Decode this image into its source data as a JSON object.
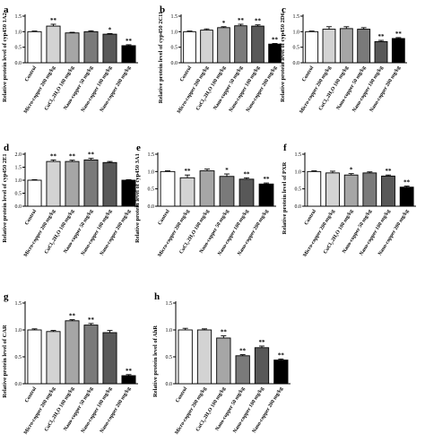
{
  "chart_data": [
    {
      "type": "bar",
      "panel": "a",
      "ylabel": "Relative protein level of cyp450 1A2",
      "categories": [
        "Control",
        "Micro-copper 200 mg/kg",
        "CuCl₂.2H₂O 100 mg/kg",
        "Nano-copper 50 mg/kg",
        "Nano-copper 100 mg/kg",
        "Nano-copper 200 mg/kg"
      ],
      "values": [
        1.0,
        1.18,
        0.96,
        1.0,
        0.92,
        0.55
      ],
      "errors": [
        0.02,
        0.06,
        0.02,
        0.03,
        0.02,
        0.03
      ],
      "significance": [
        "",
        "**",
        "",
        "",
        "*",
        "**"
      ],
      "ylim": [
        0,
        1.5
      ],
      "yticks": [
        "0.0",
        "0.5",
        "1.0",
        "1.5"
      ]
    },
    {
      "type": "bar",
      "panel": "b",
      "ylabel": "Relative protein level of cyp450 2C11",
      "categories": [
        "Control",
        "Micro-copper 200 mg/kg",
        "CuCl₂.2H₂O 100 mg/kg",
        "Nano-copper 50 mg/kg",
        "Nano-copper 100 mg/kg",
        "Nano-copper 200 mg/kg"
      ],
      "values": [
        1.0,
        1.05,
        1.13,
        1.19,
        1.18,
        0.6
      ],
      "errors": [
        0.02,
        0.04,
        0.03,
        0.05,
        0.04,
        0.02
      ],
      "significance": [
        "",
        "",
        "*",
        "**",
        "**",
        "**"
      ],
      "ylim": [
        0,
        1.5
      ],
      "yticks": [
        "0.0",
        "0.5",
        "1.0",
        "1.5"
      ]
    },
    {
      "type": "bar",
      "panel": "c",
      "ylabel": "Relative protein level of cyp450 2D6",
      "categories": [
        "Control",
        "Micro-copper 200 mg/kg",
        "CuCl₂.2H₂O 100 mg/kg",
        "Nano-copper 50 mg/kg",
        "Nano-copper 100 mg/kg",
        "Nano-copper 200 mg/kg"
      ],
      "values": [
        1.0,
        1.08,
        1.1,
        1.08,
        0.68,
        0.78
      ],
      "errors": [
        0.02,
        0.08,
        0.06,
        0.05,
        0.04,
        0.03
      ],
      "significance": [
        "",
        "",
        "",
        "",
        "**",
        "**"
      ],
      "ylim": [
        0,
        1.5
      ],
      "yticks": [
        "0.0",
        "0.5",
        "1.0",
        "1.5"
      ]
    },
    {
      "type": "bar",
      "panel": "d",
      "ylabel": "Relative protein level of cyp450 2E1",
      "categories": [
        "Control",
        "Micro-copper 200 mg/kg",
        "CuCl₂.2H₂O 100 mg/kg",
        "Nano-copper 50 mg/kg",
        "Nano-copper 100 mg/kg",
        "Nano-copper 200 mg/kg"
      ],
      "values": [
        1.0,
        1.72,
        1.72,
        1.78,
        1.68,
        1.0
      ],
      "errors": [
        0.02,
        0.06,
        0.05,
        0.06,
        0.04,
        0.02
      ],
      "significance": [
        "",
        "**",
        "**",
        "**",
        "",
        ""
      ],
      "ylim": [
        0,
        2.0
      ],
      "yticks": [
        "0.0",
        "0.5",
        "1.0",
        "1.5",
        "2.0"
      ]
    },
    {
      "type": "bar",
      "panel": "e",
      "ylabel": "Relative protein level of cyp450 3A1",
      "categories": [
        "Control",
        "Micro-copper 200 mg/kg",
        "CuCl₂.2H₂O 100 mg/kg",
        "Nano-copper 50 mg/kg",
        "Nano-copper 100 mg/kg",
        "Nano-copper 200 mg/kg"
      ],
      "values": [
        1.0,
        0.82,
        1.02,
        0.86,
        0.78,
        0.64
      ],
      "errors": [
        0.02,
        0.08,
        0.05,
        0.07,
        0.04,
        0.03
      ],
      "significance": [
        "",
        "**",
        "",
        "*",
        "**",
        "**"
      ],
      "ylim": [
        0,
        1.5
      ],
      "yticks": [
        "0.0",
        "0.5",
        "1.0",
        "1.5"
      ]
    },
    {
      "type": "bar",
      "panel": "f",
      "ylabel": "Relative protein level of PXR",
      "categories": [
        "Control",
        "Micro-copper 200 mg/kg",
        "CuCl₂.2H₂O 100 mg/kg",
        "Nano-copper 50 mg/kg",
        "Nano-copper 100 mg/kg",
        "Nano-copper 200 mg/kg"
      ],
      "values": [
        1.0,
        0.96,
        0.9,
        0.96,
        0.87,
        0.55
      ],
      "errors": [
        0.02,
        0.05,
        0.04,
        0.03,
        0.03,
        0.03
      ],
      "significance": [
        "",
        "",
        "*",
        "",
        "**",
        "**"
      ],
      "ylim": [
        0,
        1.5
      ],
      "yticks": [
        "0.0",
        "0.5",
        "1.0",
        "1.5"
      ]
    },
    {
      "type": "bar",
      "panel": "g",
      "ylabel": "Relative protein level of CAR",
      "categories": [
        "Control",
        "Micro-copper 200 mg/kg",
        "CuCl₂.2H₂O 100 mg/kg",
        "Nano-copper 50 mg/kg",
        "Nano-copper 100 mg/kg",
        "Nano-copper 200 mg/kg"
      ],
      "values": [
        1.0,
        0.97,
        1.17,
        1.09,
        0.95,
        0.15
      ],
      "errors": [
        0.02,
        0.02,
        0.02,
        0.03,
        0.04,
        0.02
      ],
      "significance": [
        "",
        "",
        "**",
        "**",
        "",
        "**"
      ],
      "ylim": [
        0,
        1.5
      ],
      "yticks": [
        "0.0",
        "0.5",
        "1.0",
        "1.5"
      ]
    },
    {
      "type": "bar",
      "panel": "h",
      "ylabel": "Relative protein level of AhR",
      "categories": [
        "Control",
        "Micro-copper 200 mg/kg",
        "CuCl₂.2H₂O 100 mg/kg",
        "Nano-copper 50 mg/kg",
        "Nano-copper 100 mg/kg",
        "Nano-copper 200 mg/kg"
      ],
      "values": [
        1.0,
        1.0,
        0.85,
        0.52,
        0.67,
        0.44
      ],
      "errors": [
        0.03,
        0.02,
        0.04,
        0.02,
        0.03,
        0.02
      ],
      "significance": [
        "",
        "",
        "**",
        "**",
        "**",
        "**"
      ],
      "ylim": [
        0,
        1.5
      ],
      "yticks": [
        "0.0",
        "0.5",
        "1.0",
        "1.5"
      ]
    }
  ],
  "bar_colors": [
    "#ffffff",
    "#d3d3d3",
    "#a6a6a6",
    "#7a7a7a",
    "#585858",
    "#000000"
  ],
  "axis_color": "#000000"
}
